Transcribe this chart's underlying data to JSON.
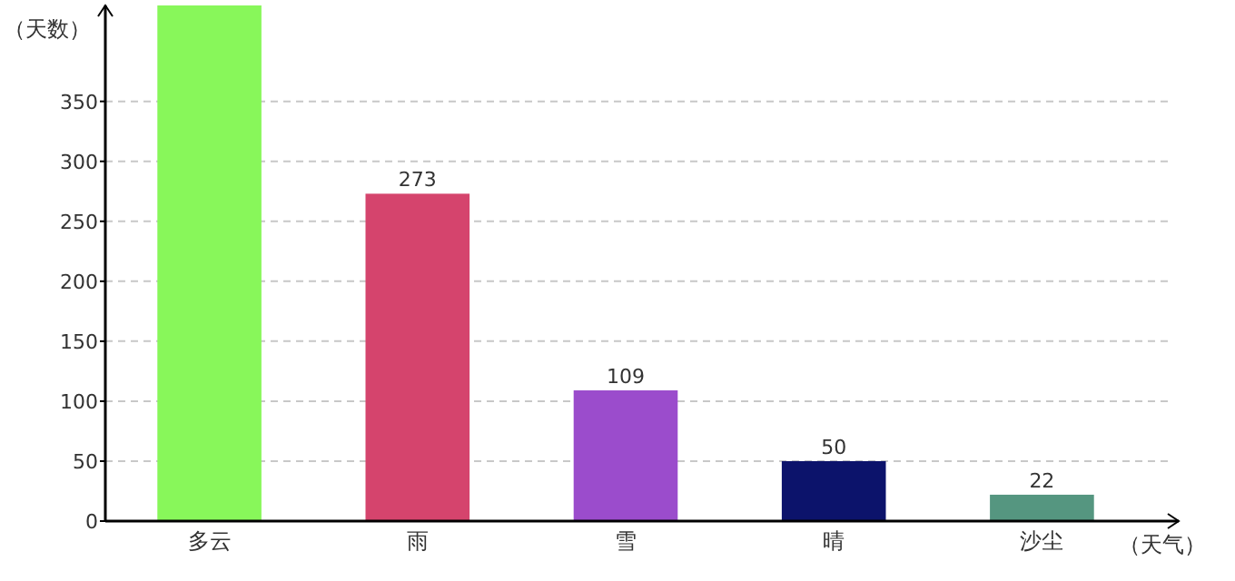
{
  "chart_data": {
    "type": "bar",
    "ylabel": "（天数）",
    "xlabel": "（天气）",
    "categories": [
      "多云",
      "雨",
      "雪",
      "晴",
      "沙尘"
    ],
    "values": [
      430,
      273,
      109,
      50,
      22
    ],
    "value_labels": [
      null,
      "273",
      "109",
      "50",
      "22"
    ],
    "colors": [
      "#88f75a",
      "#d5446d",
      "#9b4ccc",
      "#0c136b",
      "#559680"
    ],
    "ylim": [
      0,
      430
    ],
    "yticks": [
      0,
      50,
      100,
      150,
      200,
      250,
      300,
      350
    ],
    "grid": "y"
  }
}
